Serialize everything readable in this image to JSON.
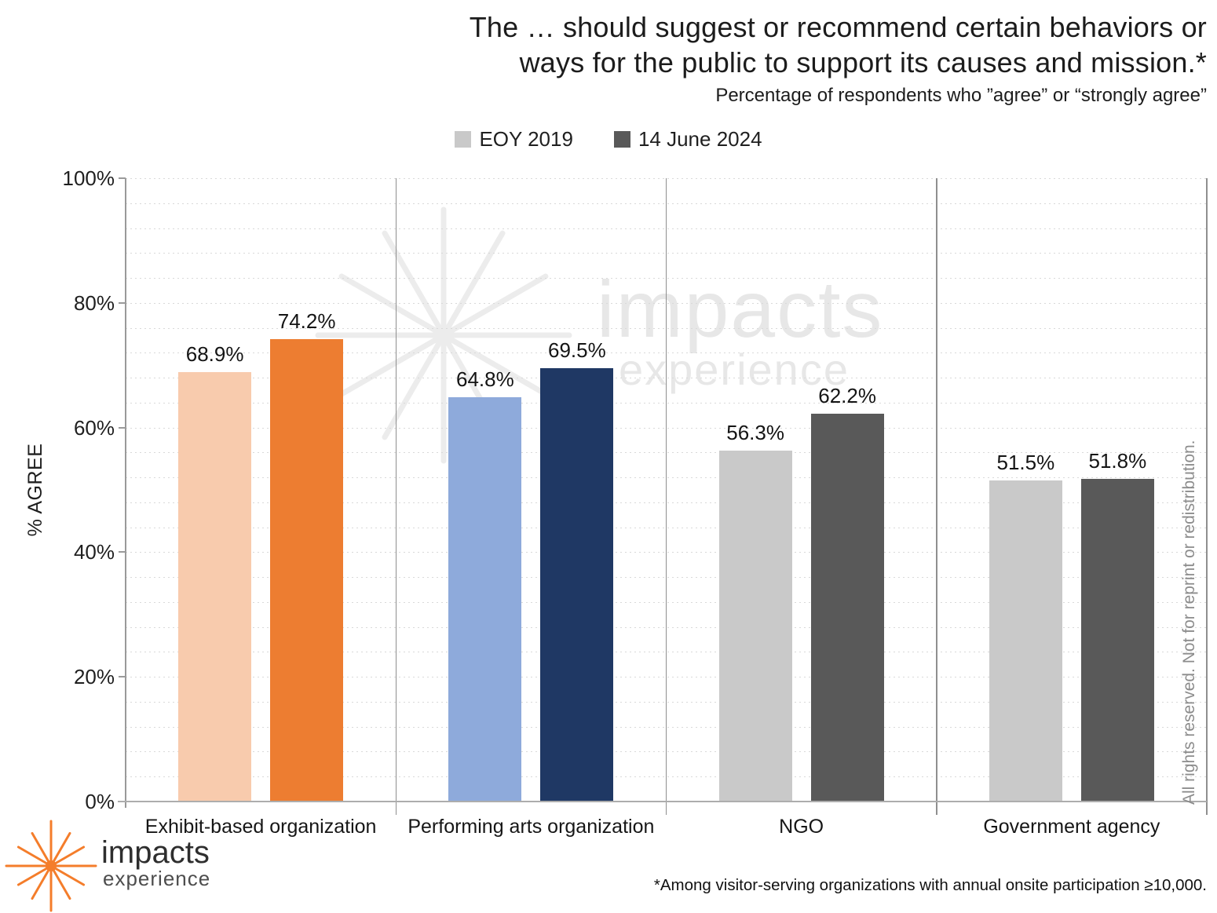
{
  "title": {
    "line1": "The … should suggest or recommend certain behaviors or",
    "line2": "ways for the public to support its causes and mission.*",
    "subtitle": "Percentage of respondents who ”agree” or “strongly agree”"
  },
  "chart_data": {
    "type": "bar",
    "title": "The … should suggest or recommend certain behaviors or ways for the public to support its causes and mission.*",
    "subtitle": "Percentage of respondents who ”agree” or “strongly agree”",
    "categories": [
      "Exhibit-based organization",
      "Performing arts organization",
      "NGO",
      "Government agency"
    ],
    "series": [
      {
        "name": "EOY 2019",
        "values": [
          68.9,
          64.8,
          56.3,
          51.5
        ],
        "value_labels": [
          "68.9%",
          "64.8%",
          "56.3%",
          "51.5%"
        ],
        "bar_colors": [
          "#F8CBAD",
          "#8EAADB",
          "#C9C9C9",
          "#C9C9C9"
        ],
        "legend_color": "#C9C9C9"
      },
      {
        "name": "14 June 2024",
        "values": [
          74.2,
          69.5,
          62.2,
          51.8
        ],
        "value_labels": [
          "74.2%",
          "69.5%",
          "62.2%",
          "51.8%"
        ],
        "bar_colors": [
          "#ED7D31",
          "#1F3864",
          "#595959",
          "#595959"
        ],
        "legend_color": "#595959"
      }
    ],
    "ylabel": "% AGREE",
    "ylim": [
      0,
      100
    ],
    "y_major_tick": 20,
    "y_minor_gridline": 4,
    "y_tick_labels": [
      "0%",
      "20%",
      "40%",
      "60%",
      "80%",
      "100%"
    ],
    "grid": "horizontal-dotted-minor",
    "legend_position": "top"
  },
  "watermark": {
    "brand": "impacts",
    "sub": "experience"
  },
  "logo": {
    "brand": "impacts",
    "sub": "experience"
  },
  "notice": "All rights reserved. Not for reprint or redistribution.",
  "footnote": "*Among visitor-serving organizations with annual onsite participation ≥10,000.",
  "colors": {
    "axis": "#9A9A9A",
    "separator": "#8F8F8F",
    "gridline": "#D9D9D9",
    "watermark": "#E7E7E7",
    "watermark_lines": "#ECECEC",
    "logo_orange": "#F47D2B",
    "notice_gray": "#8C8C8C"
  }
}
